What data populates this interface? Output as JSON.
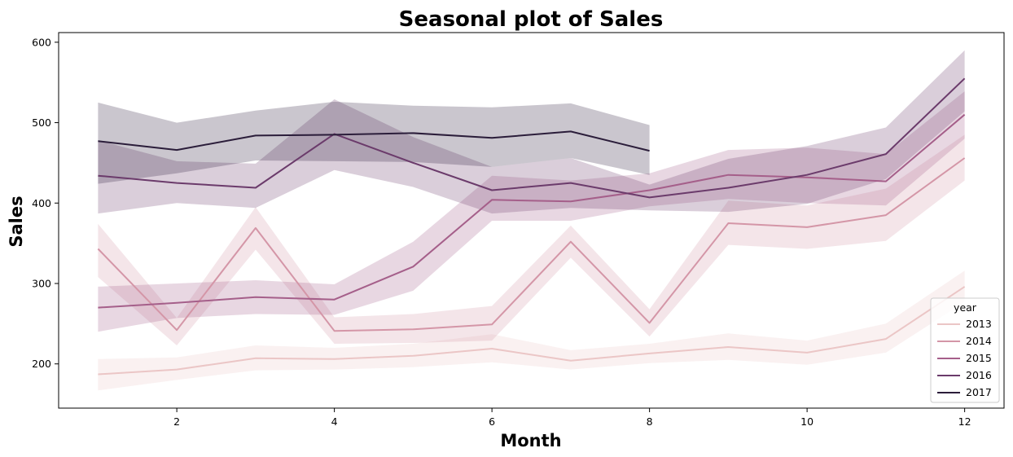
{
  "chart_data": {
    "type": "line",
    "title": "Seasonal plot of Sales",
    "xlabel": "Month",
    "ylabel": "Sales",
    "xlim": [
      0.5,
      12.5
    ],
    "ylim": [
      145,
      612
    ],
    "xticks": [
      2,
      4,
      6,
      8,
      10,
      12
    ],
    "yticks": [
      200,
      300,
      400,
      500,
      600
    ],
    "grid": false,
    "legend": {
      "title": "year",
      "position": "lower-right"
    },
    "series": [
      {
        "name": "2013",
        "color": "#ebc6c6",
        "x": [
          1,
          2,
          3,
          4,
          5,
          6,
          7,
          8,
          9,
          10,
          11,
          12
        ],
        "values": [
          187,
          193,
          207,
          206,
          210,
          219,
          204,
          213,
          221,
          214,
          231,
          296
        ],
        "lower": [
          167,
          180,
          192,
          193,
          196,
          202,
          193,
          201,
          205,
          199,
          214,
          277
        ],
        "upper": [
          206,
          208,
          223,
          220,
          225,
          237,
          217,
          225,
          238,
          229,
          250,
          316
        ]
      },
      {
        "name": "2014",
        "color": "#d496a7",
        "x": [
          1,
          2,
          3,
          4,
          5,
          6,
          7,
          8,
          9,
          10,
          11,
          12
        ],
        "values": [
          343,
          242,
          369,
          241,
          243,
          249,
          352,
          251,
          375,
          370,
          385,
          456
        ],
        "lower": [
          308,
          223,
          342,
          225,
          226,
          229,
          332,
          234,
          348,
          343,
          353,
          428
        ],
        "upper": [
          374,
          257,
          395,
          258,
          262,
          272,
          372,
          268,
          403,
          397,
          418,
          485
        ]
      },
      {
        "name": "2015",
        "color": "#a55f8a",
        "x": [
          1,
          2,
          3,
          4,
          5,
          6,
          7,
          8,
          9,
          10,
          11,
          12
        ],
        "values": [
          270,
          276,
          283,
          280,
          321,
          404,
          402,
          416,
          435,
          432,
          427,
          510
        ],
        "lower": [
          240,
          257,
          262,
          261,
          291,
          378,
          378,
          396,
          405,
          400,
          397,
          480
        ],
        "upper": [
          296,
          300,
          304,
          299,
          352,
          434,
          428,
          437,
          466,
          469,
          461,
          539
        ]
      },
      {
        "name": "2016",
        "color": "#6b3b6b",
        "x": [
          1,
          2,
          3,
          4,
          5,
          6,
          7,
          8,
          9,
          10,
          11,
          12
        ],
        "values": [
          434,
          425,
          419,
          486,
          450,
          416,
          425,
          407,
          419,
          435,
          461,
          555
        ],
        "lower": [
          387,
          400,
          394,
          441,
          420,
          387,
          394,
          391,
          389,
          399,
          430,
          514
        ],
        "upper": [
          478,
          452,
          449,
          529,
          482,
          445,
          456,
          423,
          455,
          471,
          494,
          590
        ]
      },
      {
        "name": "2017",
        "color": "#2b1d3a",
        "x": [
          1,
          2,
          3,
          4,
          5,
          6,
          7,
          8
        ],
        "values": [
          477,
          466,
          484,
          485,
          487,
          481,
          489,
          465
        ],
        "lower": [
          424,
          437,
          453,
          452,
          451,
          445,
          456,
          435
        ],
        "upper": [
          525,
          500,
          515,
          526,
          521,
          519,
          524,
          497
        ]
      }
    ]
  }
}
